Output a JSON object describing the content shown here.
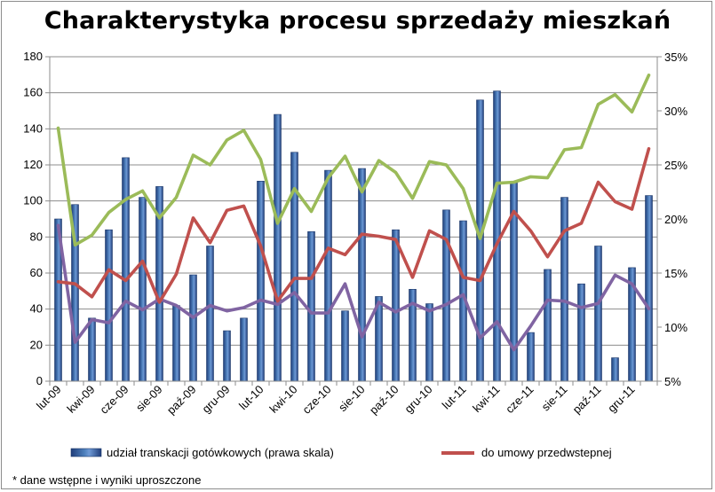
{
  "title": "Charakterystyka procesu sprzedaży mieszkań",
  "footnote": "* dane wstępne i wyniki uproszczone",
  "chart_data": {
    "type": "bar",
    "title": "Charakterystyka procesu sprzedaży mieszkań",
    "x": [
      "lut-09",
      "mar-09",
      "kwi-09",
      "maj-09",
      "cze-09",
      "lip-09",
      "sie-09",
      "wrz-09",
      "paź-09",
      "lis-09",
      "gru-09",
      "sty-10",
      "lut-10",
      "mar-10",
      "kwi-10",
      "maj-10",
      "cze-10",
      "lip-10",
      "sie-10",
      "wrz-10",
      "paź-10",
      "lis-10",
      "gru-10",
      "sty-11",
      "lut-11",
      "mar-11",
      "kwi-11",
      "maj-11",
      "cze-11",
      "lip-11",
      "sie-11",
      "wrz-11",
      "paź-11",
      "lis-11",
      "gru-11",
      "sty-12"
    ],
    "x_tick_labels": [
      "lut-09",
      "kwi-09",
      "cze-09",
      "sie-09",
      "paź-09",
      "gru-09",
      "lut-10",
      "kwi-10",
      "cze-10",
      "sie-10",
      "paź-10",
      "gru-10",
      "lut-11",
      "kwi-11",
      "cze-11",
      "sie-11",
      "paź-11",
      "gru-11"
    ],
    "left_axis": {
      "ylim": [
        0,
        180
      ],
      "ticks": [
        "0",
        "20",
        "40",
        "60",
        "80",
        "100",
        "120",
        "140",
        "160",
        "180"
      ]
    },
    "right_axis": {
      "ylim": [
        5,
        35
      ],
      "unit": "%",
      "ticks": [
        "5%",
        "10%",
        "15%",
        "20%",
        "25%",
        "30%",
        "35%"
      ]
    },
    "grid": true,
    "legend_position": "bottom",
    "series": [
      {
        "name": "udział transkacji gotówkowych  (prawa skala)",
        "kind": "bar",
        "axis": "left",
        "color": "#2f5597",
        "values": [
          90,
          98,
          35,
          84,
          124,
          102,
          108,
          42,
          59,
          75,
          28,
          35,
          111,
          148,
          127,
          83,
          117,
          39,
          118,
          47,
          84,
          51,
          43,
          95,
          89,
          156,
          161,
          110,
          27,
          62,
          102,
          54,
          75,
          13,
          63,
          103
        ]
      },
      {
        "name": "do umowy przedwstepnej",
        "kind": "line",
        "axis": "right",
        "color": "#c0504d",
        "values": [
          14.2,
          14,
          12.8,
          15.3,
          14.3,
          16.1,
          12.3,
          14.9,
          20.1,
          17.8,
          20.8,
          21.2,
          17.5,
          12.4,
          14.5,
          14.5,
          17.3,
          16.7,
          18.6,
          18.4,
          18.1,
          14.6,
          18.9,
          18.1,
          14.6,
          14.3,
          17.7,
          20.7,
          18.9,
          16.5,
          18.9,
          19.6,
          23.4,
          21.6,
          20.9,
          26.5
        ]
      },
      {
        "name": "",
        "kind": "line",
        "axis": "right",
        "color": "#9bbb59",
        "values": [
          28.4,
          17.6,
          18.5,
          20.6,
          21.8,
          22.6,
          20.1,
          22,
          25.9,
          25,
          27.3,
          28.2,
          25.5,
          19.6,
          22.8,
          20.7,
          23.8,
          25.8,
          22.5,
          25.4,
          24.3,
          21.9,
          25.3,
          25,
          22.8,
          18.2,
          23.3,
          23.4,
          23.9,
          23.8,
          26.4,
          26.6,
          30.6,
          31.5,
          29.9,
          33.3
        ]
      },
      {
        "name": "",
        "kind": "line",
        "axis": "right",
        "color": "#8064a2",
        "values": [
          19.4,
          8.6,
          10.7,
          10.4,
          12.4,
          11.6,
          12.6,
          12,
          10.9,
          12,
          11.5,
          11.8,
          12.5,
          12.1,
          13.2,
          11.3,
          11.3,
          14,
          9.1,
          12.3,
          11.4,
          12.2,
          11.5,
          12.1,
          13,
          9,
          10.5,
          7.9,
          10.1,
          12.5,
          12.4,
          11.8,
          12.2,
          14.8,
          14,
          11.7
        ]
      }
    ]
  }
}
